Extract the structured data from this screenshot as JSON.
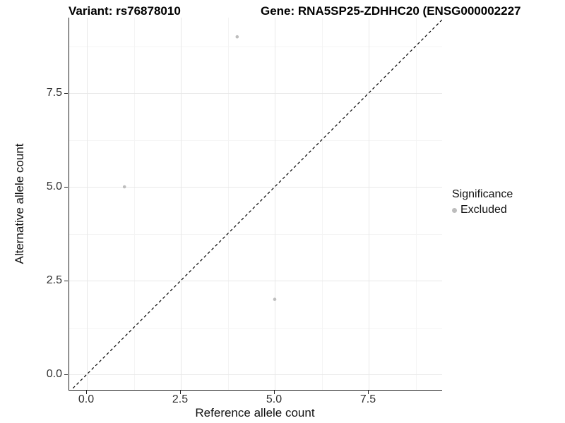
{
  "header": {
    "title_left": "Variant: rs76878010",
    "title_right": "Gene: RNA5SP25-ZDHHC20 (ENSG000002227"
  },
  "chart_data": {
    "type": "scatter",
    "xlabel": "Reference allele count",
    "ylabel": "Alternative allele count",
    "x_ticks": [
      0.0,
      2.5,
      5.0,
      7.5
    ],
    "y_ticks": [
      0.0,
      2.5,
      5.0,
      7.5
    ],
    "x_tick_labels": [
      "0.0",
      "2.5",
      "5.0",
      "7.5"
    ],
    "y_tick_labels": [
      "0.0",
      "2.5",
      "5.0",
      "7.5"
    ],
    "minor_ticks": [
      1.25,
      3.75,
      6.25,
      8.75
    ],
    "xlim": [
      -0.47,
      9.45
    ],
    "ylim": [
      -0.45,
      9.5
    ],
    "grid": true,
    "identity_line": {
      "slope": 1,
      "intercept": 0,
      "style": "dashed",
      "color": "#000000"
    },
    "series": [
      {
        "name": "Excluded",
        "color": "#bdbdbd",
        "points": [
          {
            "x": 1,
            "y": 5
          },
          {
            "x": 4,
            "y": 9
          },
          {
            "x": 5,
            "y": 2
          }
        ]
      }
    ],
    "legend": {
      "position": "right",
      "title": "Significance",
      "items": [
        {
          "label": "Excluded",
          "color": "#bdbdbd"
        }
      ]
    }
  }
}
